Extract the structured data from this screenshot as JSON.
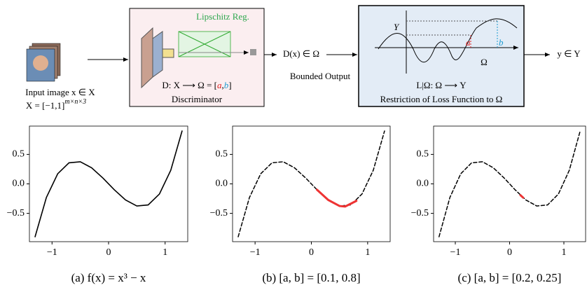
{
  "diagram": {
    "input_label": "Input image x ∈ X",
    "input_domain": "X = [−1,1]",
    "input_exp": "m×n×3",
    "discriminator": {
      "reg_label": "Lipschitz Reg.",
      "map_prefix": "D: X ⟶ Ω = [",
      "a": "a",
      "sep": ",",
      "b": "b",
      "map_suffix": "]",
      "name": "Discriminator"
    },
    "output": "D(x) ∈ Ω",
    "output_caption": "Bounded Output",
    "restriction": {
      "Y": "Y",
      "a": "a",
      "b": "b",
      "omega": "Ω",
      "mapping": "L|Ω: Ω ⟶ Y",
      "name": "Restriction of Loss Function to Ω"
    },
    "result": "y ∈ Y"
  },
  "chart_data": [
    {
      "type": "line",
      "title": "(a) f(x) = x³ − x",
      "xlim": [
        -1.4,
        1.4
      ],
      "ylim": [
        -0.98,
        0.98
      ],
      "xticks": [
        {
          "value": -1,
          "label": "−1"
        },
        0,
        1
      ],
      "yticks": [
        {
          "value": -0.5,
          "label": "−0.5"
        },
        {
          "value": 0,
          "label": "0.0"
        },
        0.5
      ],
      "series": [
        {
          "color": "#000000",
          "dash": false,
          "x": [
            -1.3,
            -1.1,
            -0.9,
            -0.7,
            -0.5,
            -0.3,
            -0.1,
            0.1,
            0.3,
            0.5,
            0.7,
            0.9,
            1.1,
            1.3
          ],
          "values": [
            -0.897,
            -0.231,
            0.171,
            0.357,
            0.375,
            0.273,
            0.099,
            -0.099,
            -0.273,
            -0.375,
            -0.357,
            -0.171,
            0.231,
            0.897
          ]
        }
      ]
    },
    {
      "type": "line",
      "title": "(b) [a, b] = [0.1, 0.8]",
      "xlim": [
        -1.4,
        1.4
      ],
      "ylim": [
        -0.98,
        0.98
      ],
      "xticks": [
        {
          "value": -1,
          "label": "−1"
        },
        0,
        1
      ],
      "yticks": [
        {
          "value": -0.5,
          "label": "−0.5"
        },
        {
          "value": 0,
          "label": "0.0"
        },
        0.5
      ],
      "series": [
        {
          "color": "#000000",
          "dash": true,
          "x": [
            -1.3,
            -1.1,
            -0.9,
            -0.7,
            -0.5,
            -0.3,
            -0.1,
            0.1,
            0.3,
            0.5,
            0.7,
            0.9,
            1.1,
            1.3
          ],
          "values": [
            -0.897,
            -0.231,
            0.171,
            0.357,
            0.375,
            0.273,
            0.099,
            -0.099,
            -0.273,
            -0.375,
            -0.357,
            -0.171,
            0.231,
            0.897
          ]
        },
        {
          "color": "#ee3333",
          "dash": false,
          "x": [
            0.1,
            0.3,
            0.5,
            0.6,
            0.8
          ],
          "values": [
            -0.099,
            -0.273,
            -0.375,
            -0.384,
            -0.288
          ]
        }
      ]
    },
    {
      "type": "line",
      "title": "(c) [a, b] = [0.2, 0.25]",
      "xlim": [
        -1.4,
        1.4
      ],
      "ylim": [
        -0.98,
        0.98
      ],
      "xticks": [
        {
          "value": -1,
          "label": "−1"
        },
        0,
        1
      ],
      "yticks": [
        {
          "value": -0.5,
          "label": "−0.5"
        },
        {
          "value": 0,
          "label": "0.0"
        },
        0.5
      ],
      "series": [
        {
          "color": "#000000",
          "dash": true,
          "x": [
            -1.3,
            -1.1,
            -0.9,
            -0.7,
            -0.5,
            -0.3,
            -0.1,
            0.1,
            0.3,
            0.5,
            0.7,
            0.9,
            1.1,
            1.3
          ],
          "values": [
            -0.897,
            -0.231,
            0.171,
            0.357,
            0.375,
            0.273,
            0.099,
            -0.099,
            -0.273,
            -0.375,
            -0.357,
            -0.171,
            0.231,
            0.897
          ]
        },
        {
          "color": "#ee3333",
          "dash": false,
          "x": [
            0.2,
            0.25
          ],
          "values": [
            -0.192,
            -0.234
          ]
        }
      ]
    }
  ]
}
